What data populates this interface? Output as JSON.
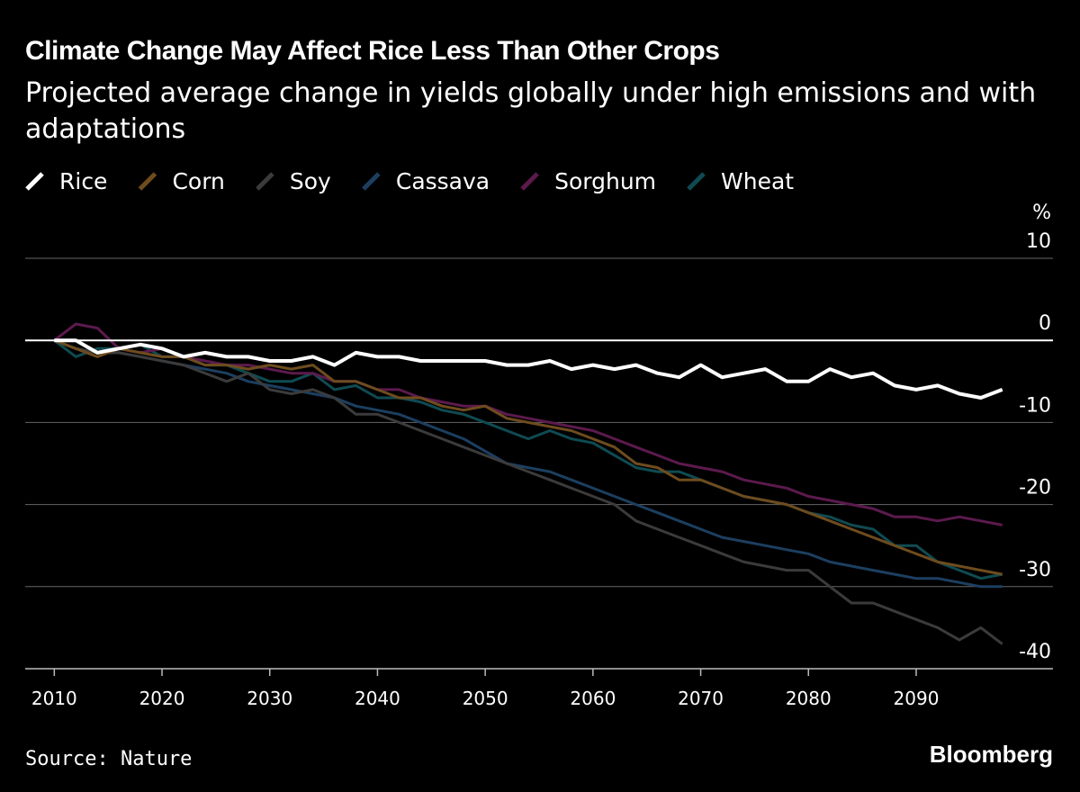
{
  "chart_data": {
    "type": "line",
    "title": "Climate Change May Affect Rice Less Than Other Crops",
    "subtitle": "Projected average change in yields globally under high emissions and with adaptations",
    "y_label": "%",
    "source": "Source: Nature",
    "brand": "Bloomberg",
    "x": [
      2010,
      2012,
      2014,
      2016,
      2018,
      2020,
      2022,
      2024,
      2026,
      2028,
      2030,
      2032,
      2034,
      2036,
      2038,
      2040,
      2042,
      2044,
      2046,
      2048,
      2050,
      2052,
      2054,
      2056,
      2058,
      2060,
      2062,
      2064,
      2066,
      2068,
      2070,
      2072,
      2074,
      2076,
      2078,
      2080,
      2082,
      2084,
      2086,
      2088,
      2090,
      2092,
      2094,
      2096,
      2098
    ],
    "series": [
      {
        "name": "Rice",
        "color": "#ffffff",
        "values": [
          0,
          0,
          -1.5,
          -1,
          -0.5,
          -1,
          -2,
          -1.5,
          -2,
          -2,
          -2.5,
          -2.5,
          -2,
          -3,
          -1.5,
          -2,
          -2,
          -2.5,
          -2.5,
          -2.5,
          -2.5,
          -3,
          -3,
          -2.5,
          -3.5,
          -3,
          -3.5,
          -3,
          -4,
          -4.5,
          -3,
          -4.5,
          -4,
          -3.5,
          -5,
          -5,
          -3.5,
          -4.5,
          -4,
          -5.5,
          -6,
          -5.5,
          -6.5,
          -7,
          -6
        ]
      },
      {
        "name": "Corn",
        "color": "#6e4c1e",
        "values": [
          0,
          -1,
          -2,
          -1,
          -1.5,
          -2,
          -2,
          -3,
          -3,
          -3.5,
          -3,
          -3.5,
          -3,
          -5,
          -5,
          -6,
          -7,
          -7,
          -8,
          -8.5,
          -8,
          -9.5,
          -10,
          -10.5,
          -11,
          -12,
          -13,
          -15,
          -15.5,
          -17,
          -17,
          -18,
          -19,
          -19.5,
          -20,
          -21,
          -22,
          -23,
          -24,
          -25,
          -26,
          -27,
          -27.5,
          -28,
          -28.5
        ]
      },
      {
        "name": "Soy",
        "color": "#3b3b3b",
        "values": [
          0,
          -1,
          -1.5,
          -1.5,
          -2,
          -2.5,
          -3,
          -4,
          -5,
          -4,
          -6,
          -6.5,
          -6,
          -7,
          -9,
          -9,
          -10,
          -11,
          -12,
          -13,
          -14,
          -15,
          -16,
          -17,
          -18,
          -19,
          -20,
          -22,
          -23,
          -24,
          -25,
          -26,
          -27,
          -27.5,
          -28,
          -28,
          -30,
          -32,
          -32,
          -33,
          -34,
          -35,
          -36.5,
          -35,
          -37
        ]
      },
      {
        "name": "Cassava",
        "color": "#1c3f60",
        "values": [
          0,
          -1,
          -1.5,
          -1.5,
          -2,
          -2.5,
          -3,
          -3.5,
          -4,
          -5,
          -5.5,
          -6,
          -6.5,
          -7,
          -8,
          -8.5,
          -9,
          -10,
          -11,
          -12,
          -13.5,
          -15,
          -15.5,
          -16,
          -17,
          -18,
          -19,
          -20,
          -21,
          -22,
          -23,
          -24,
          -24.5,
          -25,
          -25.5,
          -26,
          -27,
          -27.5,
          -28,
          -28.5,
          -29,
          -29,
          -29.5,
          -30,
          -30
        ]
      },
      {
        "name": "Sorghum",
        "color": "#5c1a4d",
        "values": [
          0,
          2,
          1.5,
          -1,
          -1.5,
          -1,
          -2,
          -2.5,
          -3,
          -3,
          -3.5,
          -4,
          -4,
          -5,
          -5,
          -6,
          -6,
          -7,
          -7.5,
          -8,
          -8,
          -9,
          -9.5,
          -10,
          -10.5,
          -11,
          -12,
          -13,
          -14,
          -15,
          -15.5,
          -16,
          -17,
          -17.5,
          -18,
          -19,
          -19.5,
          -20,
          -20.5,
          -21.5,
          -21.5,
          -22,
          -21.5,
          -22,
          -22.5
        ]
      },
      {
        "name": "Wheat",
        "color": "#0f4b52",
        "values": [
          0,
          -2,
          -1,
          -1,
          -0.5,
          -2,
          -2,
          -3,
          -3,
          -4,
          -5,
          -5,
          -4,
          -6,
          -5.5,
          -7,
          -7,
          -7.5,
          -8.5,
          -9,
          -10,
          -11,
          -12,
          -11,
          -12,
          -12.5,
          -14,
          -15.5,
          -16,
          -16,
          -17,
          -18,
          -19,
          -19.5,
          -20,
          -21,
          -21.5,
          -22.5,
          -23,
          -25,
          -25,
          -27,
          -28,
          -29,
          -28.5
        ]
      }
    ],
    "xlim": [
      2007.3,
      2102.7
    ],
    "xticks": [
      2010,
      2020,
      2030,
      2040,
      2050,
      2060,
      2070,
      2080,
      2090
    ],
    "ylim": [
      -40,
      10
    ],
    "yticks": [
      10,
      0,
      -10,
      -20,
      -30,
      -40
    ],
    "grid": true
  }
}
